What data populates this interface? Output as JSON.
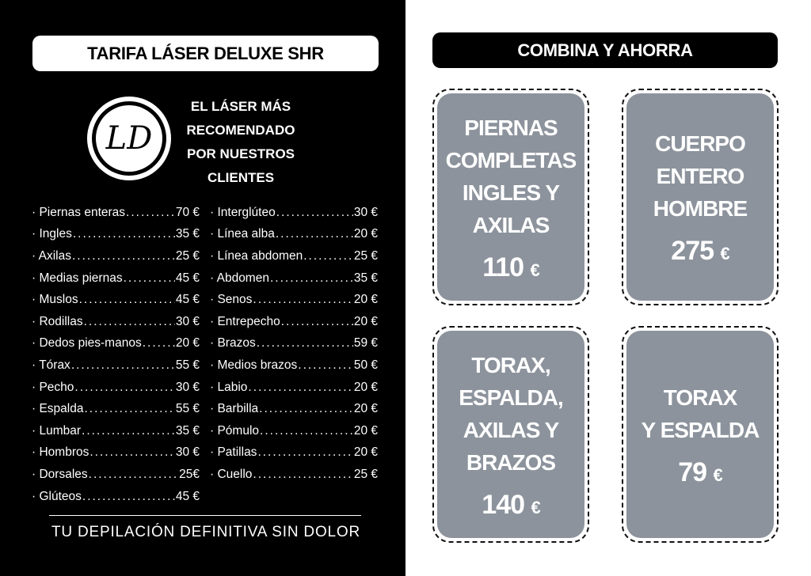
{
  "left": {
    "title": "TARIFA LÁSER DELUXE SHR",
    "logo_text": "LD",
    "tagline": [
      "EL LÁSER MÁS",
      "RECOMENDADO",
      "POR NUESTROS",
      "CLIENTES"
    ],
    "col1": [
      {
        "name": "· Piernas enteras",
        "price": "70 €"
      },
      {
        "name": "· Ingles",
        "price": "35 €"
      },
      {
        "name": "· Axilas",
        "price": "25 €"
      },
      {
        "name": "· Medias piernas",
        "price": "45 €"
      },
      {
        "name": "· Muslos",
        "price": "45 €"
      },
      {
        "name": "· Rodillas",
        "price": "30 €"
      },
      {
        "name": "· Dedos pies-manos",
        "price": "20 €"
      },
      {
        "name": "· Tórax",
        "price": "55 €"
      },
      {
        "name": "· Pecho",
        "price": "30 €"
      },
      {
        "name": "· Espalda",
        "price": "55 €"
      },
      {
        "name": "· Lumbar",
        "price": "35 €"
      },
      {
        "name": "· Hombros",
        "price": "30 €"
      },
      {
        "name": "· Dorsales",
        "price": "25€"
      },
      {
        "name": "· Glúteos",
        "price": "45 €"
      }
    ],
    "col2": [
      {
        "name": "· Interglúteo",
        "price": "30 €"
      },
      {
        "name": "· Línea alba",
        "price": "20 €"
      },
      {
        "name": "· Línea abdomen",
        "price": "25 €"
      },
      {
        "name": "· Abdomen",
        "price": "35 €"
      },
      {
        "name": "· Senos",
        "price": "20 €"
      },
      {
        "name": "· Entrepecho",
        "price": "20 €"
      },
      {
        "name": "· Brazos",
        "price": "59 €"
      },
      {
        "name": "· Medios brazos",
        "price": "50 €"
      },
      {
        "name": "· Labio",
        "price": "20 €"
      },
      {
        "name": "· Barbilla",
        "price": "20 €"
      },
      {
        "name": "· Pómulo",
        "price": "20 €"
      },
      {
        "name": "· Patillas",
        "price": "20 €"
      },
      {
        "name": "· Cuello",
        "price": "25 €"
      }
    ],
    "slogan": "TU DEPILACIÓN DEFINITIVA SIN DOLOR"
  },
  "right": {
    "title": "COMBINA Y AHORRA",
    "card_color": "#8c939c",
    "cards": [
      {
        "lines": [
          "PIERNAS",
          "COMPLETAS",
          "INGLES Y",
          "AXILAS"
        ],
        "price": "110",
        "currency": "€"
      },
      {
        "lines": [
          "CUERPO",
          "ENTERO",
          "HOMBRE"
        ],
        "price": "275",
        "currency": "€"
      },
      {
        "lines": [
          "TORAX,",
          "ESPALDA,",
          "AXILAS Y",
          "BRAZOS"
        ],
        "price": "140",
        "currency": "€"
      },
      {
        "lines": [
          "TORAX",
          "Y ESPALDA"
        ],
        "price": "79",
        "currency": "€"
      }
    ]
  }
}
